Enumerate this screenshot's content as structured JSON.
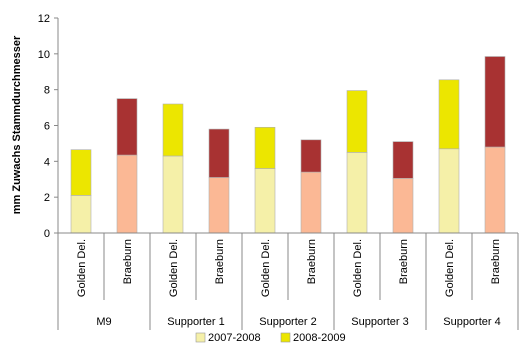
{
  "chart_data": {
    "type": "bar",
    "stacked": true,
    "ylabel": "mm Zuwachs Stammdurchmesser",
    "ylim": [
      0,
      12
    ],
    "yticks": [
      0,
      2,
      4,
      6,
      8,
      10,
      12
    ],
    "groups": [
      "M9",
      "Supporter 1",
      "Supporter 2",
      "Supporter 3",
      "Supporter 4"
    ],
    "varieties": [
      "Golden Del.",
      "Braeburn"
    ],
    "categories": [
      "Golden Del.",
      "Braeburn",
      "Golden Del.",
      "Braeburn",
      "Golden Del.",
      "Braeburn",
      "Golden Del.",
      "Braeburn",
      "Golden Del.",
      "Braeburn"
    ],
    "series": [
      {
        "name": "2007-2008",
        "values": [
          2.1,
          4.35,
          4.3,
          3.1,
          3.6,
          3.4,
          4.5,
          3.05,
          4.7,
          4.8
        ]
      },
      {
        "name": "2008-2009",
        "values": [
          2.55,
          3.15,
          2.9,
          2.7,
          2.3,
          1.8,
          3.45,
          2.05,
          3.85,
          5.05
        ]
      }
    ],
    "colors": {
      "2007-2008": {
        "Golden Del.": "#f5f0a8",
        "Braeburn": "#fbb895"
      },
      "2008-2009": {
        "Golden Del.": "#ece600",
        "Braeburn": "#a83232"
      }
    },
    "legend_colors": {
      "2007-2008": "#f5f0a8",
      "2008-2009": "#ece600"
    },
    "legend_position": "bottom-right",
    "grid": false
  }
}
